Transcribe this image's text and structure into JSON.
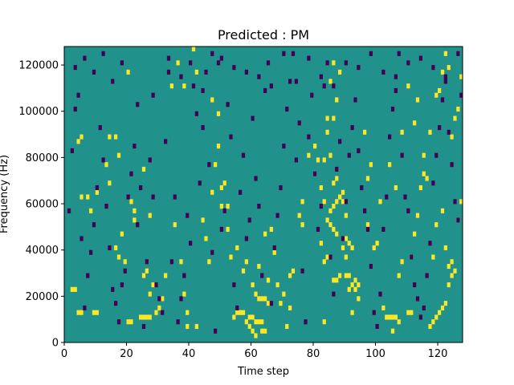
{
  "chart_data": {
    "type": "heatmap",
    "title": "Predicted : PM",
    "xlabel": "Time step",
    "ylabel": "Frequency (Hz)",
    "xlim": [
      0,
      128
    ],
    "ylim": [
      0,
      128000
    ],
    "x_ticks": [
      0,
      20,
      40,
      60,
      80,
      100,
      120
    ],
    "y_ticks": [
      0,
      20000,
      40000,
      60000,
      80000,
      100000,
      120000
    ],
    "x_tick_labels": [
      "0",
      "20",
      "40",
      "60",
      "80",
      "100",
      "120"
    ],
    "y_tick_labels": [
      "0",
      "20000",
      "40000",
      "60000",
      "80000",
      "100000",
      "120000"
    ],
    "n_time_steps": 128,
    "n_freq_bins": 64,
    "bin_hz": 2000,
    "colors": {
      "background": "#21918c",
      "high": "#fde725",
      "low": "#440154"
    },
    "high_cells": [
      [
        2,
        11
      ],
      [
        3,
        11
      ],
      [
        4,
        6
      ],
      [
        5,
        6
      ],
      [
        9,
        6
      ],
      [
        10,
        6
      ],
      [
        20,
        4
      ],
      [
        21,
        4
      ],
      [
        24,
        5
      ],
      [
        25,
        5
      ],
      [
        26,
        5
      ],
      [
        27,
        5
      ],
      [
        39,
        6
      ],
      [
        42,
        3
      ],
      [
        54,
        5
      ],
      [
        55,
        6
      ],
      [
        56,
        6
      ],
      [
        57,
        6
      ],
      [
        59,
        5
      ],
      [
        60,
        5
      ],
      [
        61,
        4
      ],
      [
        62,
        4
      ],
      [
        63,
        4
      ],
      [
        62,
        9
      ],
      [
        63,
        9
      ],
      [
        64,
        9
      ],
      [
        65,
        8
      ],
      [
        72,
        14
      ],
      [
        83,
        4
      ],
      [
        86,
        13
      ],
      [
        87,
        13
      ],
      [
        88,
        14
      ],
      [
        90,
        14
      ],
      [
        91,
        14
      ],
      [
        92,
        12
      ],
      [
        93,
        11
      ],
      [
        94,
        12
      ],
      [
        104,
        5
      ],
      [
        105,
        5
      ],
      [
        106,
        5
      ],
      [
        107,
        4
      ],
      [
        110,
        6
      ],
      [
        111,
        6
      ],
      [
        117,
        3
      ],
      [
        118,
        4
      ],
      [
        119,
        5
      ],
      [
        120,
        6
      ],
      [
        121,
        7
      ],
      [
        122,
        8
      ],
      [
        123,
        12
      ],
      [
        124,
        14
      ],
      [
        125,
        15
      ],
      [
        85,
        28
      ],
      [
        86,
        29
      ],
      [
        87,
        30
      ],
      [
        88,
        31
      ],
      [
        89,
        32
      ],
      [
        90,
        27
      ],
      [
        84,
        26
      ],
      [
        85,
        25
      ],
      [
        86,
        24
      ],
      [
        87,
        23
      ],
      [
        90,
        22
      ],
      [
        91,
        21
      ],
      [
        92,
        20
      ],
      [
        86,
        34
      ],
      [
        87,
        35
      ],
      [
        88,
        31
      ],
      [
        89,
        30
      ],
      [
        82,
        21
      ],
      [
        83,
        17
      ],
      [
        84,
        18
      ],
      [
        80,
        36
      ],
      [
        81,
        39
      ],
      [
        82,
        33
      ],
      [
        83,
        30
      ],
      [
        84,
        45
      ],
      [
        85,
        40
      ],
      [
        86,
        48
      ],
      [
        87,
        52
      ],
      [
        88,
        58
      ],
      [
        4,
        43
      ],
      [
        5,
        44
      ],
      [
        7,
        31
      ],
      [
        8,
        28
      ],
      [
        13,
        38
      ],
      [
        14,
        34
      ],
      [
        16,
        20
      ],
      [
        17,
        18
      ],
      [
        18,
        23
      ],
      [
        19,
        17
      ],
      [
        21,
        30
      ],
      [
        22,
        26
      ],
      [
        25,
        14
      ],
      [
        26,
        15
      ],
      [
        27,
        10
      ],
      [
        28,
        12
      ],
      [
        29,
        6
      ],
      [
        30,
        7
      ],
      [
        31,
        9
      ],
      [
        32,
        14
      ],
      [
        36,
        60
      ],
      [
        38,
        55
      ],
      [
        41,
        63
      ],
      [
        42,
        58
      ],
      [
        45,
        22
      ],
      [
        47,
        32
      ],
      [
        48,
        38
      ],
      [
        49,
        42
      ],
      [
        50,
        33
      ],
      [
        51,
        34
      ],
      [
        52,
        29
      ],
      [
        55,
        20
      ],
      [
        58,
        17
      ],
      [
        60,
        12
      ],
      [
        61,
        10
      ],
      [
        62,
        16
      ],
      [
        64,
        23
      ],
      [
        66,
        24
      ],
      [
        67,
        19
      ],
      [
        68,
        12
      ],
      [
        70,
        10
      ],
      [
        71,
        3
      ],
      [
        72,
        7
      ],
      [
        73,
        15
      ],
      [
        75,
        27
      ],
      [
        76,
        30
      ],
      [
        78,
        40
      ],
      [
        80,
        42
      ],
      [
        96,
        45
      ],
      [
        97,
        25
      ],
      [
        99,
        20
      ],
      [
        101,
        30
      ],
      [
        104,
        38
      ],
      [
        106,
        33
      ],
      [
        108,
        45
      ],
      [
        110,
        55
      ],
      [
        112,
        47
      ],
      [
        113,
        52
      ],
      [
        115,
        40
      ],
      [
        116,
        35
      ],
      [
        118,
        18
      ],
      [
        119,
        25
      ],
      [
        121,
        28
      ],
      [
        122,
        20
      ],
      [
        123,
        16
      ],
      [
        124,
        17
      ],
      [
        126,
        26
      ],
      [
        127,
        30
      ],
      [
        5,
        31
      ],
      [
        10,
        32
      ],
      [
        14,
        44
      ],
      [
        16,
        44
      ],
      [
        17,
        40
      ],
      [
        20,
        58
      ],
      [
        22,
        28
      ],
      [
        25,
        37
      ],
      [
        27,
        27
      ],
      [
        34,
        55
      ],
      [
        35,
        25
      ],
      [
        37,
        17
      ],
      [
        38,
        10
      ],
      [
        39,
        3
      ],
      [
        44,
        26
      ],
      [
        46,
        17
      ],
      [
        47,
        52
      ],
      [
        49,
        49
      ],
      [
        50,
        29
      ],
      [
        52,
        24
      ],
      [
        53,
        18
      ],
      [
        57,
        15
      ],
      [
        58,
        4
      ],
      [
        59,
        3
      ],
      [
        60,
        2
      ],
      [
        61,
        1
      ],
      [
        63,
        2
      ],
      [
        64,
        2
      ],
      [
        65,
        13
      ],
      [
        69,
        8
      ],
      [
        76,
        25
      ],
      [
        83,
        39
      ],
      [
        84,
        48
      ],
      [
        85,
        56
      ],
      [
        86,
        60
      ],
      [
        89,
        20
      ],
      [
        90,
        18
      ],
      [
        91,
        11
      ],
      [
        92,
        6
      ],
      [
        93,
        13
      ],
      [
        94,
        9
      ],
      [
        97,
        35
      ],
      [
        98,
        38
      ],
      [
        100,
        21
      ],
      [
        102,
        7
      ],
      [
        103,
        5
      ],
      [
        105,
        2
      ],
      [
        107,
        14
      ],
      [
        108,
        17
      ],
      [
        111,
        18
      ],
      [
        112,
        23
      ],
      [
        113,
        27
      ],
      [
        114,
        33
      ],
      [
        115,
        36
      ],
      [
        117,
        45
      ],
      [
        119,
        53
      ],
      [
        120,
        54
      ],
      [
        121,
        58
      ],
      [
        122,
        62
      ],
      [
        123,
        59
      ],
      [
        124,
        44
      ],
      [
        125,
        48
      ],
      [
        126,
        50
      ],
      [
        127,
        57
      ]
    ],
    "low_cells": [
      [
        1,
        28
      ],
      [
        2,
        41
      ],
      [
        3,
        50
      ],
      [
        4,
        53
      ],
      [
        5,
        22
      ],
      [
        6,
        7
      ],
      [
        7,
        14
      ],
      [
        8,
        19
      ],
      [
        9,
        25
      ],
      [
        10,
        33
      ],
      [
        11,
        46
      ],
      [
        12,
        39
      ],
      [
        13,
        29
      ],
      [
        14,
        20
      ],
      [
        15,
        11
      ],
      [
        16,
        8
      ],
      [
        17,
        4
      ],
      [
        18,
        12
      ],
      [
        19,
        15
      ],
      [
        20,
        31
      ],
      [
        21,
        36
      ],
      [
        22,
        42
      ],
      [
        23,
        25
      ],
      [
        24,
        33
      ],
      [
        25,
        3
      ],
      [
        26,
        17
      ],
      [
        27,
        39
      ],
      [
        28,
        31
      ],
      [
        29,
        12
      ],
      [
        30,
        9
      ],
      [
        31,
        6
      ],
      [
        32,
        43
      ],
      [
        33,
        58
      ],
      [
        34,
        17
      ],
      [
        35,
        31
      ],
      [
        36,
        4
      ],
      [
        37,
        9
      ],
      [
        38,
        14
      ],
      [
        39,
        27
      ],
      [
        40,
        21
      ],
      [
        41,
        55
      ],
      [
        42,
        49
      ],
      [
        43,
        34
      ],
      [
        44,
        46
      ],
      [
        45,
        58
      ],
      [
        46,
        38
      ],
      [
        47,
        19
      ],
      [
        48,
        2
      ],
      [
        49,
        60
      ],
      [
        50,
        24
      ],
      [
        51,
        28
      ],
      [
        52,
        51
      ],
      [
        53,
        44
      ],
      [
        54,
        12
      ],
      [
        55,
        7
      ],
      [
        56,
        32
      ],
      [
        57,
        40
      ],
      [
        58,
        22
      ],
      [
        59,
        26
      ],
      [
        60,
        48
      ],
      [
        61,
        35
      ],
      [
        62,
        29
      ],
      [
        63,
        14
      ],
      [
        64,
        54
      ],
      [
        65,
        60
      ],
      [
        66,
        8
      ],
      [
        67,
        20
      ],
      [
        68,
        27
      ],
      [
        69,
        33
      ],
      [
        70,
        42
      ],
      [
        71,
        50
      ],
      [
        72,
        56
      ],
      [
        73,
        62
      ],
      [
        74,
        39
      ],
      [
        75,
        47
      ],
      [
        76,
        15
      ],
      [
        77,
        4
      ],
      [
        78,
        44
      ],
      [
        79,
        53
      ],
      [
        80,
        36
      ],
      [
        81,
        24
      ],
      [
        82,
        29
      ],
      [
        83,
        55
      ],
      [
        84,
        60
      ],
      [
        85,
        18
      ],
      [
        86,
        10
      ],
      [
        87,
        37
      ],
      [
        88,
        43
      ],
      [
        89,
        22
      ],
      [
        90,
        30
      ],
      [
        91,
        40
      ],
      [
        92,
        46
      ],
      [
        93,
        52
      ],
      [
        94,
        41
      ],
      [
        95,
        33
      ],
      [
        96,
        28
      ],
      [
        97,
        24
      ],
      [
        98,
        16
      ],
      [
        99,
        6
      ],
      [
        100,
        3
      ],
      [
        101,
        10
      ],
      [
        102,
        24
      ],
      [
        103,
        31
      ],
      [
        104,
        44
      ],
      [
        105,
        50
      ],
      [
        106,
        57
      ],
      [
        107,
        62
      ],
      [
        108,
        40
      ],
      [
        109,
        31
      ],
      [
        110,
        28
      ],
      [
        111,
        18
      ],
      [
        112,
        12
      ],
      [
        113,
        9
      ],
      [
        114,
        5
      ],
      [
        115,
        7
      ],
      [
        116,
        14
      ],
      [
        117,
        21
      ],
      [
        118,
        34
      ],
      [
        119,
        40
      ],
      [
        120,
        46
      ],
      [
        121,
        52
      ],
      [
        122,
        56
      ],
      [
        123,
        45
      ],
      [
        124,
        38
      ],
      [
        125,
        30
      ],
      [
        126,
        26
      ],
      [
        127,
        53
      ],
      [
        3,
        59
      ],
      [
        6,
        61
      ],
      [
        9,
        58
      ],
      [
        12,
        62
      ],
      [
        15,
        56
      ],
      [
        18,
        60
      ],
      [
        23,
        51
      ],
      [
        28,
        53
      ],
      [
        33,
        61
      ],
      [
        37,
        57
      ],
      [
        40,
        60
      ],
      [
        44,
        54
      ],
      [
        47,
        62
      ],
      [
        50,
        61
      ],
      [
        54,
        59
      ],
      [
        58,
        58
      ],
      [
        62,
        57
      ],
      [
        66,
        55
      ],
      [
        70,
        62
      ],
      [
        74,
        56
      ],
      [
        78,
        61
      ],
      [
        82,
        57
      ],
      [
        86,
        55
      ],
      [
        90,
        60
      ],
      [
        94,
        59
      ],
      [
        98,
        62
      ],
      [
        102,
        58
      ],
      [
        106,
        54
      ],
      [
        110,
        60
      ],
      [
        114,
        61
      ],
      [
        118,
        59
      ],
      [
        122,
        57
      ],
      [
        126,
        62
      ]
    ]
  }
}
